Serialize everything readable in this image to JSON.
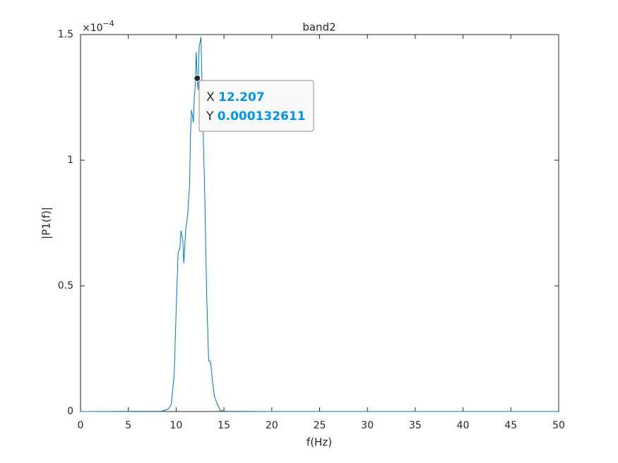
{
  "chart_data": {
    "type": "line",
    "title": "band2",
    "x_label": "f(Hz)",
    "y_label": "|P1(f)|",
    "y_exponent": {
      "base": "×10",
      "power": "−4"
    },
    "color": "#0072BD",
    "x": [
      0,
      8.5,
      9.2,
      9.5,
      9.8,
      10.0,
      10.2,
      10.4,
      10.5,
      10.7,
      10.8,
      11.0,
      11.2,
      11.4,
      11.5,
      11.6,
      11.7,
      11.8,
      11.9,
      12.0,
      12.1,
      12.207,
      12.3,
      12.4,
      12.6,
      12.7,
      12.8,
      13.0,
      13.2,
      13.4,
      13.6,
      13.8,
      14.0,
      14.3,
      14.6,
      15,
      20,
      50
    ],
    "values": [
      0,
      1e-07,
      1e-06,
      3e-06,
      1.5e-05,
      4e-05,
      6.3e-05,
      6.5e-05,
      7.2e-05,
      6.8e-05,
      5.9e-05,
      7.2e-05,
      7.8e-05,
      9e-05,
      0.00011,
      0.00012,
      0.000118,
      0.000115,
      0.000125,
      0.00013,
      0.000143,
      0.000132611,
      0.000128,
      0.000145,
      0.000149,
      0.00013,
      0.000115,
      8.5e-05,
      4.5e-05,
      2e-05,
      2e-05,
      1.2e-05,
      6e-06,
      3e-06,
      5e-07,
      1e-07,
      0,
      0
    ],
    "xlim": [
      0,
      50
    ],
    "xticks": [
      0,
      5,
      10,
      15,
      20,
      25,
      30,
      35,
      40,
      45,
      50
    ],
    "ylim": [
      0,
      0.00015
    ],
    "yticks": [
      {
        "value": 0,
        "label": "0"
      },
      {
        "value": 5e-05,
        "label": "0.5"
      },
      {
        "value": 0.0001,
        "label": "1"
      },
      {
        "value": 0.00015,
        "label": "1.5"
      }
    ],
    "datatip": {
      "x_label": "X",
      "x": 12.207,
      "y_label": "Y",
      "y": 0.000132611
    }
  }
}
